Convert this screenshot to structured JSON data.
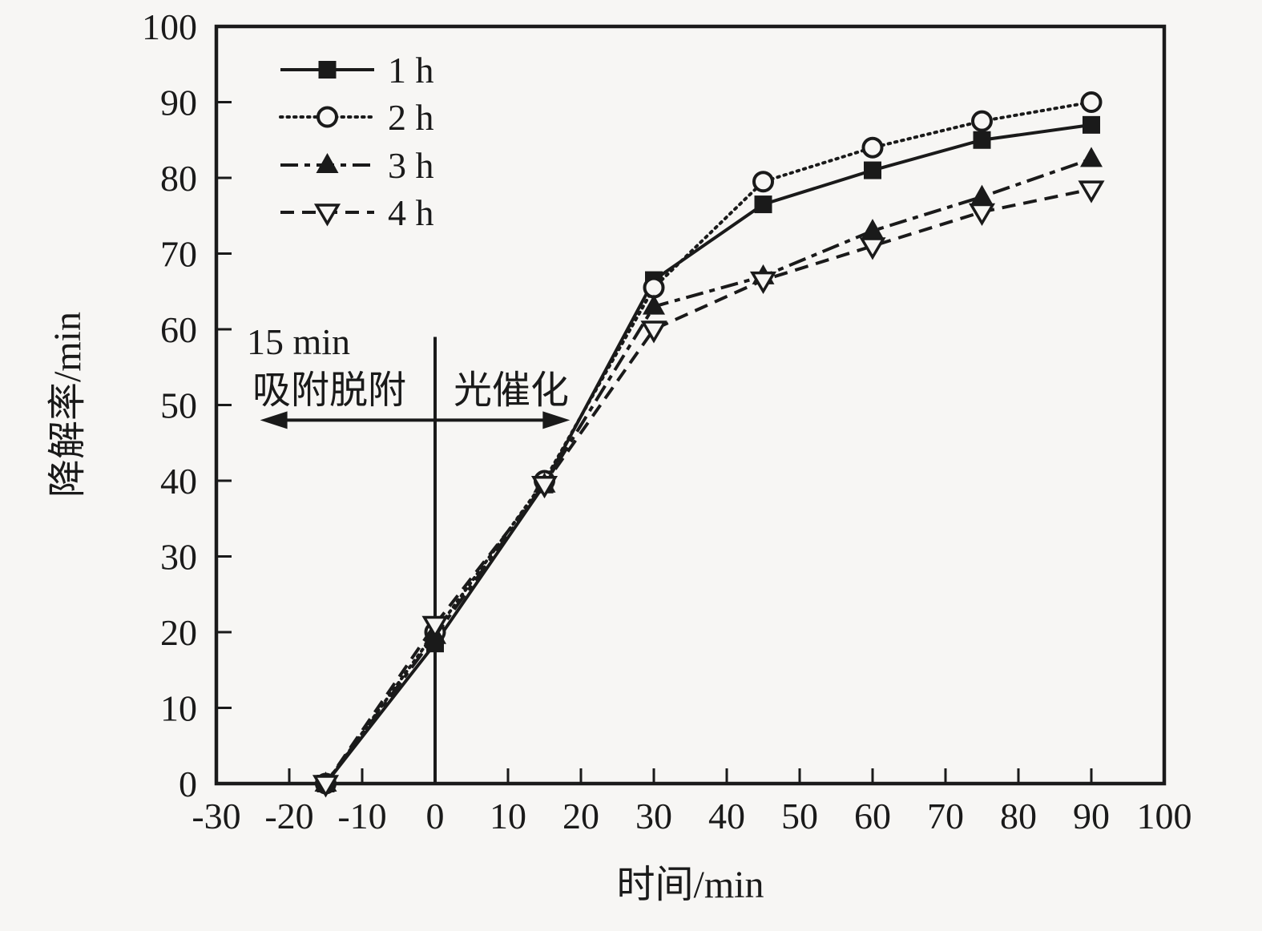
{
  "figure": {
    "background": "#f7f6f4",
    "ink": "#1a1a1a"
  },
  "chart_data": {
    "type": "line",
    "title": "",
    "xlabel": "时间/min",
    "ylabel": "降解率/min",
    "xlim": [
      -30,
      100
    ],
    "ylim": [
      0,
      100
    ],
    "xticks": [
      -30,
      -20,
      -10,
      0,
      10,
      20,
      30,
      40,
      50,
      60,
      70,
      80,
      90,
      100
    ],
    "yticks": [
      0,
      10,
      20,
      30,
      40,
      50,
      60,
      70,
      80,
      90,
      100
    ],
    "grid": false,
    "legend_position": "upper-left-inside",
    "x": [
      -15,
      0,
      15,
      30,
      45,
      60,
      75,
      90
    ],
    "series": [
      {
        "name": "1 h",
        "marker": "filled-square",
        "line_style": "solid",
        "values": [
          0,
          18.5,
          39.5,
          66.5,
          76.5,
          81,
          85,
          87
        ]
      },
      {
        "name": "2 h",
        "marker": "open-circle",
        "line_style": "dotted",
        "values": [
          0,
          20,
          40,
          65.5,
          79.5,
          84,
          87.5,
          90
        ]
      },
      {
        "name": "3 h",
        "marker": "filled-triangle-up",
        "line_style": "dash-dot",
        "values": [
          0,
          19.5,
          39.5,
          63,
          67,
          73,
          77.5,
          82.5
        ]
      },
      {
        "name": "4 h",
        "marker": "open-triangle-down",
        "line_style": "dashed",
        "values": [
          0,
          21,
          39.5,
          60,
          66.5,
          71,
          75.5,
          78.5
        ]
      }
    ],
    "annotations": {
      "duration_label": "15 min",
      "phase_left": "吸附脱附",
      "phase_right": "光催化",
      "divider_x": 0,
      "divider_top": 59,
      "arrow_y": 48,
      "arrow_from_x": -24,
      "arrow_to_x": 18.5
    }
  }
}
